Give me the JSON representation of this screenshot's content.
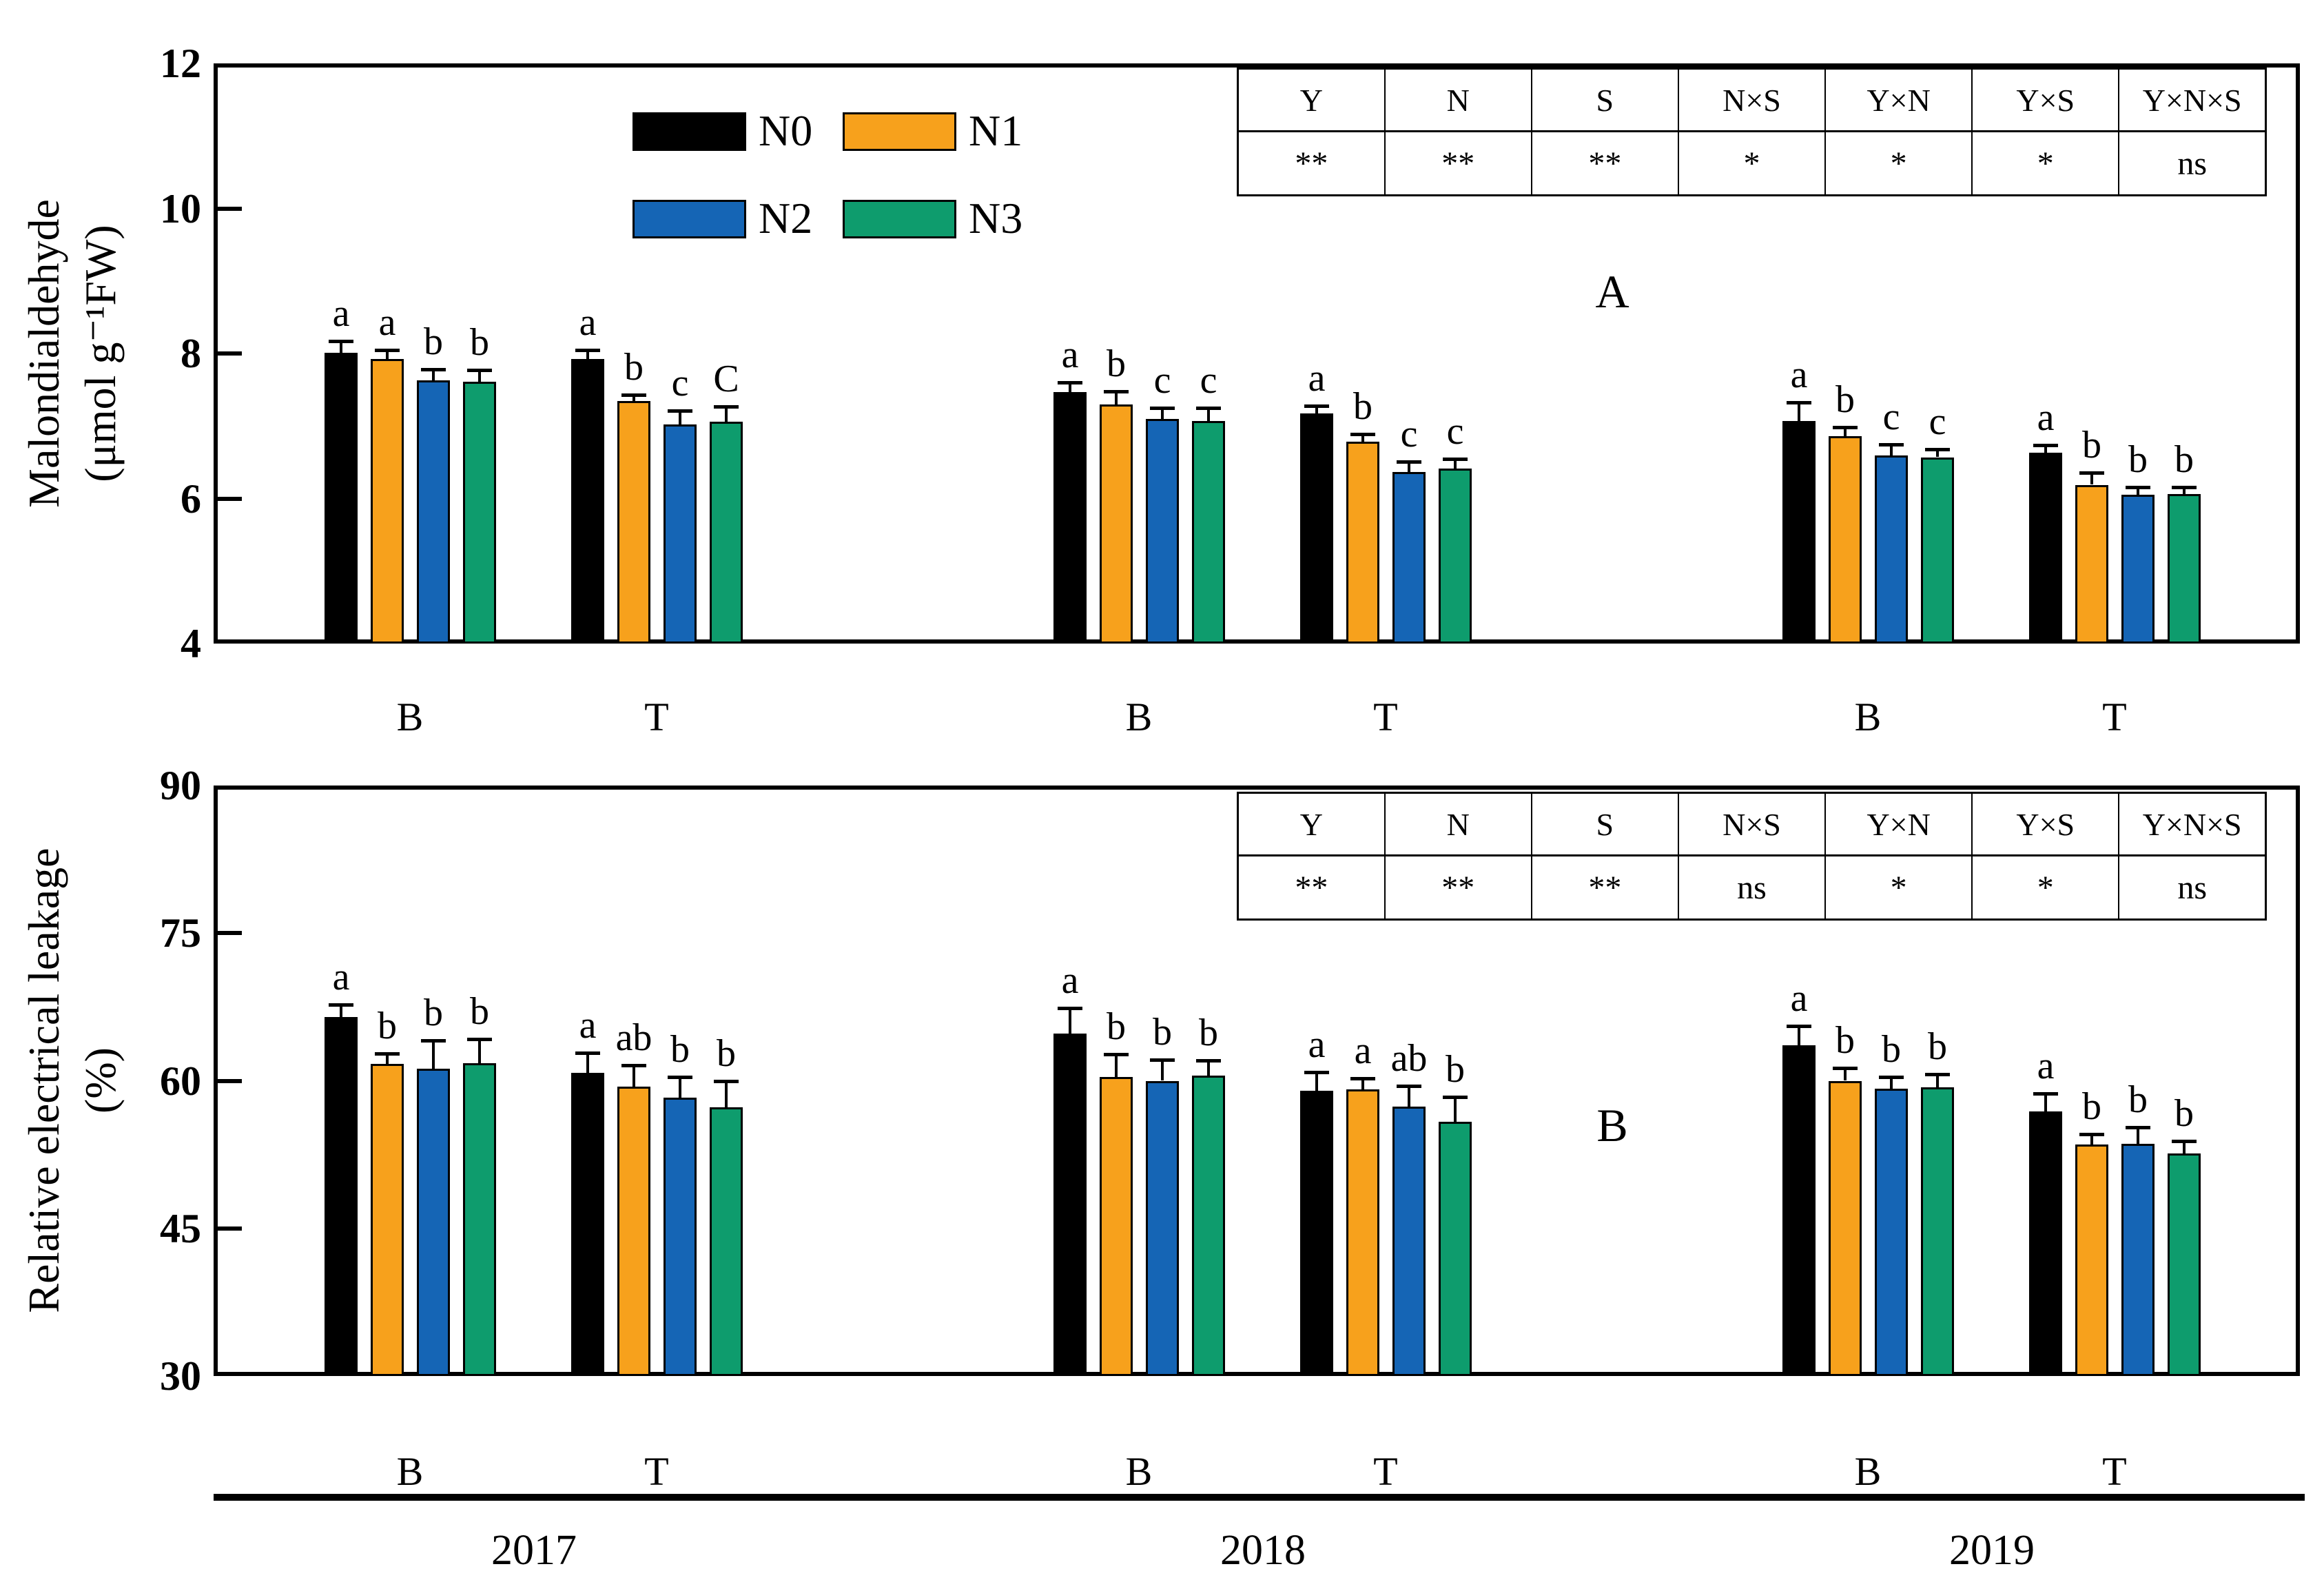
{
  "figure_title": "",
  "x_axis": {
    "years": [
      "2017",
      "2018",
      "2019"
    ],
    "group_labels": [
      "B",
      "T"
    ]
  },
  "chart_data": [
    {
      "type": "bar",
      "panel_label": "A",
      "ylabel_line1": "Malondialdehyde",
      "ylabel_line2": "(μmol g⁻¹FW)",
      "ylim": [
        4,
        12
      ],
      "yticks": [
        4,
        6,
        8,
        10,
        12
      ],
      "grid": false,
      "legend_position": "top-left-inside",
      "legend": [
        {
          "name": "N0",
          "color": "#000000"
        },
        {
          "name": "N1",
          "color": "#F7A11C"
        },
        {
          "name": "N2",
          "color": "#1565B5"
        },
        {
          "name": "N3",
          "color": "#0E9C6D"
        }
      ],
      "significance_table": {
        "headers": [
          "Y",
          "N",
          "S",
          "N×S",
          "Y×N",
          "Y×S",
          "Y×N×S"
        ],
        "values": [
          "**",
          "**",
          "**",
          "*",
          "*",
          "*",
          "ns"
        ]
      },
      "groups": [
        {
          "year": "2017",
          "treatment": "B",
          "values": [
            8.01,
            7.92,
            7.63,
            7.61
          ],
          "errors": [
            0.15,
            0.12,
            0.14,
            0.15
          ],
          "letters": [
            "a",
            "a",
            "b",
            "b"
          ]
        },
        {
          "year": "2017",
          "treatment": "T",
          "values": [
            7.92,
            7.34,
            7.02,
            7.06
          ],
          "errors": [
            0.12,
            0.08,
            0.18,
            0.2
          ],
          "letters": [
            "a",
            "b",
            "c",
            "C"
          ]
        },
        {
          "year": "2018",
          "treatment": "B",
          "values": [
            7.47,
            7.3,
            7.1,
            7.07
          ],
          "errors": [
            0.12,
            0.17,
            0.14,
            0.17
          ],
          "letters": [
            "a",
            "b",
            "c",
            "c"
          ]
        },
        {
          "year": "2018",
          "treatment": "T",
          "values": [
            7.17,
            6.78,
            6.37,
            6.41
          ],
          "errors": [
            0.1,
            0.1,
            0.13,
            0.13
          ],
          "letters": [
            "a",
            "b",
            "c",
            "c"
          ]
        },
        {
          "year": "2019",
          "treatment": "B",
          "values": [
            7.07,
            6.86,
            6.59,
            6.57
          ],
          "errors": [
            0.25,
            0.11,
            0.15,
            0.1
          ],
          "letters": [
            "a",
            "b",
            "c",
            "c"
          ]
        },
        {
          "year": "2019",
          "treatment": "T",
          "values": [
            6.63,
            6.19,
            6.05,
            6.06
          ],
          "errors": [
            0.1,
            0.16,
            0.1,
            0.09
          ],
          "letters": [
            "a",
            "b",
            "b",
            "b"
          ]
        }
      ]
    },
    {
      "type": "bar",
      "panel_label": "B",
      "ylabel_line1": "Relative electrical leakage",
      "ylabel_line2": "(%)",
      "ylim": [
        30,
        90
      ],
      "yticks": [
        30,
        45,
        60,
        75,
        90
      ],
      "grid": false,
      "legend_position": "none",
      "legend": [
        {
          "name": "N0",
          "color": "#000000"
        },
        {
          "name": "N1",
          "color": "#F7A11C"
        },
        {
          "name": "N2",
          "color": "#1565B5"
        },
        {
          "name": "N3",
          "color": "#0E9C6D"
        }
      ],
      "significance_table": {
        "headers": [
          "Y",
          "N",
          "S",
          "N×S",
          "Y×N",
          "Y×S",
          "Y×N×S"
        ],
        "values": [
          "**",
          "**",
          "**",
          "ns",
          "*",
          "*",
          "ns"
        ]
      },
      "groups": [
        {
          "year": "2017",
          "treatment": "B",
          "values": [
            66.5,
            61.7,
            61.2,
            61.8
          ],
          "errors": [
            1.2,
            1.0,
            2.8,
            2.4
          ],
          "letters": [
            "a",
            "b",
            "b",
            "b"
          ]
        },
        {
          "year": "2017",
          "treatment": "T",
          "values": [
            60.8,
            59.4,
            58.3,
            57.3
          ],
          "errors": [
            2.0,
            2.1,
            2.0,
            2.6
          ],
          "letters": [
            "a",
            "ab",
            "b",
            "b"
          ]
        },
        {
          "year": "2018",
          "treatment": "B",
          "values": [
            64.8,
            60.4,
            60.0,
            60.5
          ],
          "errors": [
            2.5,
            2.2,
            2.1,
            1.5
          ],
          "letters": [
            "a",
            "b",
            "b",
            "b"
          ]
        },
        {
          "year": "2018",
          "treatment": "T",
          "values": [
            59.0,
            59.1,
            57.4,
            55.8
          ],
          "errors": [
            1.8,
            1.1,
            2.0,
            2.5
          ],
          "letters": [
            "a",
            "a",
            "ab",
            "b"
          ]
        },
        {
          "year": "2019",
          "treatment": "B",
          "values": [
            63.6,
            60.0,
            59.2,
            59.3
          ],
          "errors": [
            1.9,
            1.2,
            1.1,
            1.3
          ],
          "letters": [
            "a",
            "b",
            "b",
            "b"
          ]
        },
        {
          "year": "2019",
          "treatment": "T",
          "values": [
            56.9,
            53.5,
            53.6,
            52.6
          ],
          "errors": [
            1.7,
            1.0,
            1.6,
            1.2
          ],
          "letters": [
            "a",
            "b",
            "b",
            "b"
          ]
        }
      ]
    }
  ]
}
